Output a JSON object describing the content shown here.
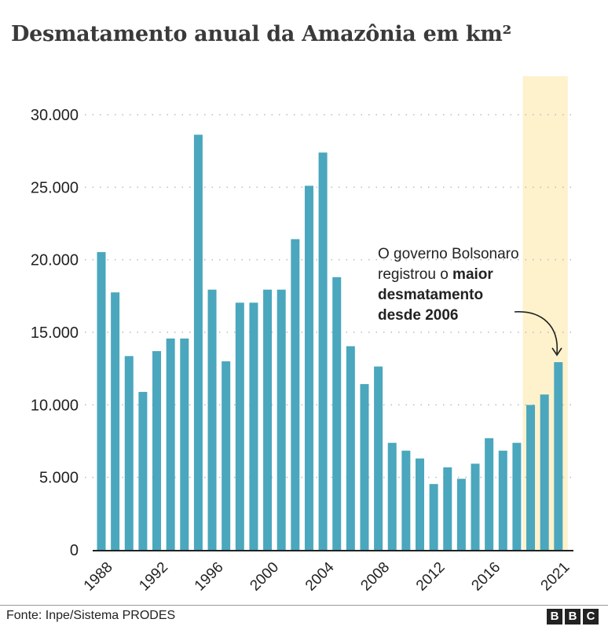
{
  "title": "Desmatamento anual da Amazônia em km²",
  "annotation": {
    "line1": "O governo Bolsonaro",
    "line2_regular": "registrou o ",
    "line2_bold": "maior",
    "line3_bold": "desmatamento",
    "line4_bold": "desde 2006"
  },
  "source": "Fonte: Inpe/Sistema PRODES",
  "logo": [
    "B",
    "B",
    "C"
  ],
  "colors": {
    "bar": "#4aa7bd",
    "highlight": "#fdf2cc",
    "axis": "#222222",
    "grid": "#bbbbbb"
  },
  "chart_data": {
    "type": "bar",
    "title": "Desmatamento anual da Amazônia em km²",
    "xlabel": "",
    "ylabel": "",
    "ylim": [
      0,
      30000
    ],
    "yticks": [
      "0",
      "5.000",
      "10.000",
      "15.000",
      "20.000",
      "25.000",
      "30.000"
    ],
    "ytick_values": [
      0,
      5000,
      10000,
      15000,
      20000,
      25000,
      30000
    ],
    "xtick_labels": [
      "1988",
      "1992",
      "1996",
      "2000",
      "2004",
      "2008",
      "2012",
      "2016",
      "2021"
    ],
    "grid": "horizontal dotted",
    "highlight_range": [
      "2019",
      "2021"
    ],
    "categories": [
      "1988",
      "1989",
      "1990",
      "1991",
      "1992",
      "1993",
      "1994",
      "1995",
      "1996",
      "1997",
      "1998",
      "1999",
      "2000",
      "2001",
      "2002",
      "2003",
      "2004",
      "2005",
      "2006",
      "2007",
      "2008",
      "2009",
      "2010",
      "2011",
      "2012",
      "2013",
      "2014",
      "2015",
      "2016",
      "2017",
      "2018",
      "2019",
      "2020",
      "2021"
    ],
    "values": [
      20530,
      17750,
      13360,
      10890,
      13700,
      14570,
      14570,
      28620,
      17940,
      13000,
      17040,
      17040,
      17940,
      17940,
      21420,
      25100,
      27390,
      18800,
      14040,
      11430,
      12640,
      7380,
      6840,
      6300,
      4540,
      5690,
      4900,
      5940,
      7700,
      6840,
      7380,
      9990,
      10710,
      12940
    ]
  }
}
